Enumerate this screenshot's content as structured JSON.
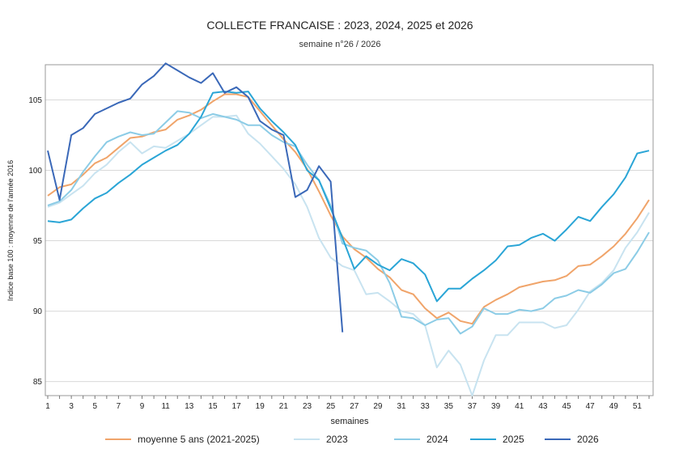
{
  "chart_data": {
    "type": "line",
    "title": "COLLECTE FRANCAISE : 2023, 2024, 2025 et 2026",
    "subtitle": "semaine n°26 / 2026",
    "xlabel": "semaines",
    "ylabel": "Indice base 100 : moyenne de l'année 2016",
    "xlim": [
      1,
      52
    ],
    "ylim": [
      84,
      107.5
    ],
    "x_ticks": [
      1,
      3,
      5,
      7,
      9,
      11,
      13,
      15,
      17,
      19,
      21,
      23,
      25,
      27,
      29,
      31,
      33,
      35,
      37,
      39,
      41,
      43,
      45,
      47,
      49,
      51
    ],
    "y_ticks": [
      85,
      90,
      95,
      100,
      105
    ],
    "grid": "horizontal",
    "legend_position": "bottom",
    "series": [
      {
        "name": "moyenne 5 ans (2021-2025)",
        "color": "#f0a46a",
        "x": [
          1,
          2,
          3,
          4,
          5,
          6,
          7,
          8,
          9,
          10,
          11,
          12,
          13,
          14,
          15,
          16,
          17,
          18,
          19,
          20,
          21,
          22,
          23,
          24,
          25,
          26,
          27,
          28,
          29,
          30,
          31,
          32,
          33,
          34,
          35,
          36,
          37,
          38,
          39,
          40,
          41,
          42,
          43,
          44,
          45,
          46,
          47,
          48,
          49,
          50,
          51,
          52
        ],
        "values": [
          98.2,
          98.8,
          99.0,
          99.7,
          100.5,
          100.9,
          101.6,
          102.3,
          102.4,
          102.7,
          102.9,
          103.6,
          103.9,
          104.3,
          104.9,
          105.4,
          105.4,
          105.2,
          104.2,
          103.2,
          102.2,
          101.3,
          100.1,
          98.5,
          96.8,
          95.3,
          94.4,
          93.8,
          93.0,
          92.4,
          91.5,
          91.2,
          90.2,
          89.5,
          89.9,
          89.3,
          89.1,
          90.3,
          90.8,
          91.2,
          91.7,
          91.9,
          92.1,
          92.2,
          92.5,
          93.2,
          93.3,
          93.9,
          94.6,
          95.5,
          96.6,
          97.9
        ]
      },
      {
        "name": "2023",
        "color": "#c8e3f0",
        "x": [
          1,
          2,
          3,
          4,
          5,
          6,
          7,
          8,
          9,
          10,
          11,
          12,
          13,
          14,
          15,
          16,
          17,
          18,
          19,
          20,
          21,
          22,
          23,
          24,
          25,
          26,
          27,
          28,
          29,
          30,
          31,
          32,
          33,
          34,
          35,
          36,
          37,
          38,
          39,
          40,
          41,
          42,
          43,
          44,
          45,
          46,
          47,
          48,
          49,
          50,
          51,
          52
        ],
        "values": [
          97.4,
          97.7,
          98.3,
          98.9,
          99.8,
          100.4,
          101.3,
          102.0,
          101.2,
          101.7,
          101.6,
          102.1,
          102.6,
          103.2,
          103.8,
          103.8,
          103.9,
          102.6,
          101.9,
          101.0,
          100.1,
          99.0,
          97.4,
          95.2,
          93.8,
          93.2,
          92.9,
          91.2,
          91.3,
          90.7,
          90.0,
          89.8,
          89.0,
          86.0,
          87.2,
          86.2,
          84.0,
          86.5,
          88.3,
          88.3,
          89.2,
          89.2,
          89.2,
          88.8,
          89.0,
          90.1,
          91.4,
          92.0,
          92.9,
          94.5,
          95.6,
          97.0
        ]
      },
      {
        "name": "2024",
        "color": "#8ccce6",
        "x": [
          1,
          2,
          3,
          4,
          5,
          6,
          7,
          8,
          9,
          10,
          11,
          12,
          13,
          14,
          15,
          16,
          17,
          18,
          19,
          20,
          21,
          22,
          23,
          24,
          25,
          26,
          27,
          28,
          29,
          30,
          31,
          32,
          33,
          34,
          35,
          36,
          37,
          38,
          39,
          40,
          41,
          42,
          43,
          44,
          45,
          46,
          47,
          48,
          49,
          50,
          51,
          52
        ],
        "values": [
          97.5,
          97.8,
          98.6,
          99.9,
          101.0,
          102.0,
          102.4,
          102.7,
          102.5,
          102.6,
          103.4,
          104.2,
          104.1,
          103.7,
          104.0,
          103.8,
          103.6,
          103.2,
          103.2,
          102.5,
          102.0,
          101.7,
          100.4,
          99.3,
          97.5,
          94.8,
          94.5,
          94.3,
          93.6,
          92.0,
          89.6,
          89.5,
          89.0,
          89.4,
          89.5,
          88.4,
          88.9,
          90.2,
          89.8,
          89.8,
          90.1,
          90.0,
          90.2,
          90.9,
          91.1,
          91.5,
          91.3,
          91.9,
          92.7,
          93.0,
          94.2,
          95.6
        ]
      },
      {
        "name": "2025",
        "color": "#2aa5d6",
        "x": [
          1,
          2,
          3,
          4,
          5,
          6,
          7,
          8,
          9,
          10,
          11,
          12,
          13,
          14,
          15,
          16,
          17,
          18,
          19,
          20,
          21,
          22,
          23,
          24,
          25,
          26,
          27,
          28,
          29,
          30,
          31,
          32,
          33,
          34,
          35,
          36,
          37,
          38,
          39,
          40,
          41,
          42,
          43,
          44,
          45,
          46,
          47,
          48,
          49,
          50,
          51,
          52
        ],
        "values": [
          96.4,
          96.3,
          96.5,
          97.3,
          98.0,
          98.4,
          99.1,
          99.7,
          100.4,
          100.9,
          101.4,
          101.8,
          102.6,
          103.8,
          105.5,
          105.6,
          105.5,
          105.6,
          104.4,
          103.5,
          102.7,
          101.8,
          100.0,
          99.3,
          97.3,
          95.2,
          93.0,
          93.9,
          93.3,
          92.9,
          93.7,
          93.4,
          92.6,
          90.7,
          91.6,
          91.6,
          92.3,
          92.9,
          93.6,
          94.6,
          94.7,
          95.2,
          95.5,
          95.0,
          95.8,
          96.7,
          96.4,
          97.4,
          98.3,
          99.5,
          101.2,
          101.4
        ]
      },
      {
        "name": "2026",
        "color": "#3a68b8",
        "x": [
          1,
          2,
          3,
          4,
          5,
          6,
          7,
          8,
          9,
          10,
          11,
          12,
          13,
          14,
          15,
          16,
          17,
          18,
          19,
          20,
          21,
          22,
          23,
          24,
          25,
          26
        ],
        "values": [
          101.4,
          97.9,
          102.5,
          103.0,
          104.0,
          104.4,
          104.8,
          105.1,
          106.1,
          106.7,
          107.6,
          107.1,
          106.6,
          106.2,
          106.9,
          105.5,
          105.9,
          105.2,
          103.5,
          102.9,
          102.5,
          98.1,
          98.6,
          100.3,
          99.2,
          88.5
        ]
      }
    ]
  }
}
